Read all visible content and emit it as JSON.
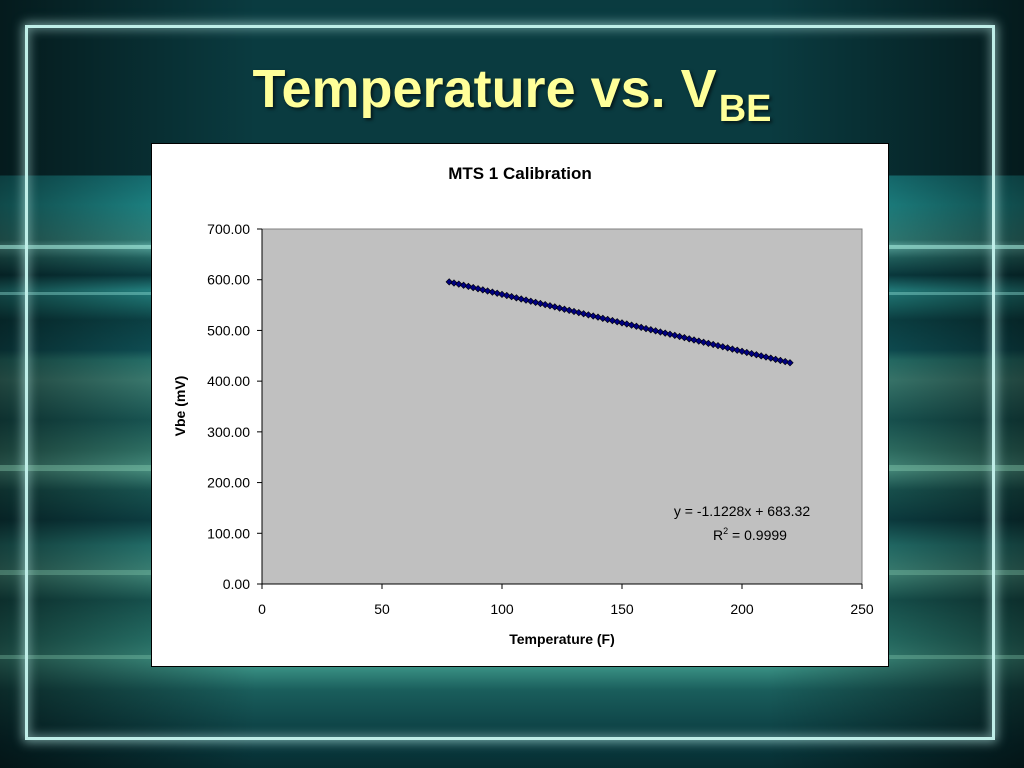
{
  "slide": {
    "title_main": "Temperature vs. V",
    "title_sub": "BE"
  },
  "chart_data": {
    "type": "scatter",
    "title": "MTS 1 Calibration",
    "xlabel": "Temperature (F)",
    "ylabel": "Vbe (mV)",
    "xlim": [
      0,
      250
    ],
    "ylim": [
      0,
      700
    ],
    "x_ticks": [
      "0",
      "50",
      "100",
      "150",
      "200",
      "250"
    ],
    "y_ticks": [
      "0.00",
      "100.00",
      "200.00",
      "300.00",
      "400.00",
      "500.00",
      "600.00",
      "700.00"
    ],
    "grid": false,
    "plot_background": "#c0c0c0",
    "marker_color": "#000080",
    "x_start": 78,
    "x_end": 220,
    "point_count": 72,
    "trendline": {
      "slope": -1.1228,
      "intercept": 683.32
    },
    "annotations": {
      "equation": "y = -1.1228x + 683.32",
      "r2_prefix": "R",
      "r2_sup": "2",
      "r2_value": " = 0.9999"
    }
  }
}
